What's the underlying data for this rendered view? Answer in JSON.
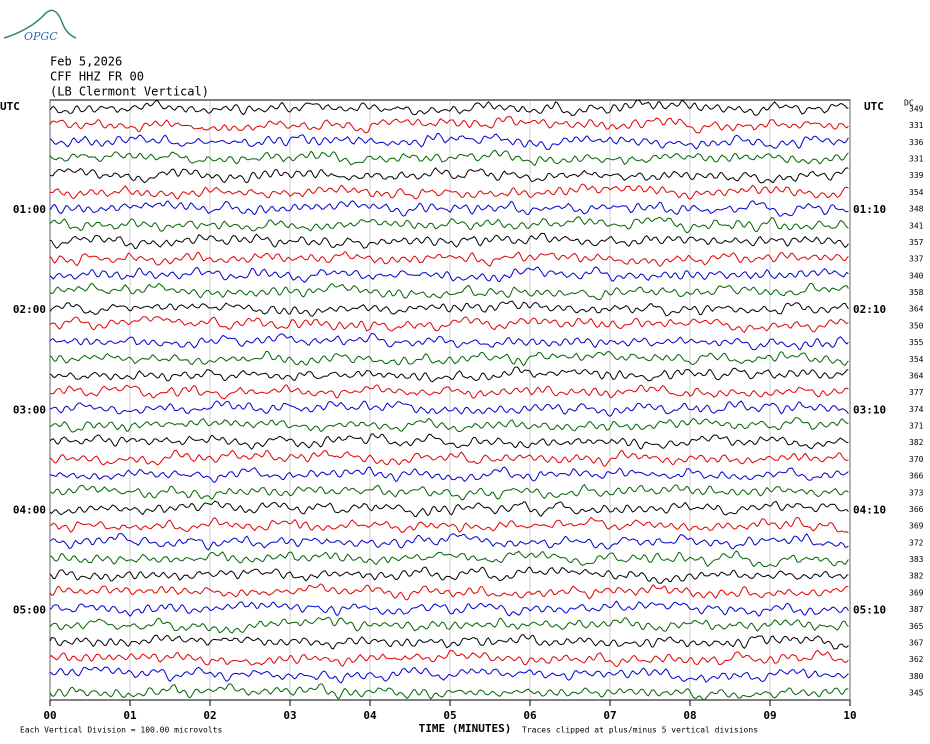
{
  "chart_data": {
    "type": "helicorder",
    "logo": "OPGC",
    "title": "Feb 5,2026",
    "subtitle": "CFF HHZ FR 00",
    "station": "(LB  Clermont Vertical)",
    "left_axis_label": "UTC",
    "right_axis_label": "UTC",
    "dc_label": "DC",
    "xlabel": "TIME (MINUTES)",
    "scale_note": "Each Vertical Division =  100.00 microvolts",
    "clip_note": "Traces clipped at plus/minus 5 vertical divisions",
    "xlim": [
      0,
      10
    ],
    "xticks": [
      {
        "value": 0,
        "label": "00"
      },
      {
        "value": 1,
        "label": "01"
      },
      {
        "value": 2,
        "label": "02"
      },
      {
        "value": 3,
        "label": "03"
      },
      {
        "value": 4,
        "label": "04"
      },
      {
        "value": 5,
        "label": "05"
      },
      {
        "value": 6,
        "label": "06"
      },
      {
        "value": 7,
        "label": "07"
      },
      {
        "value": 8,
        "label": "08"
      },
      {
        "value": 9,
        "label": "09"
      },
      10
    ],
    "grid": true,
    "trace_colors": [
      "#000000",
      "#e00000",
      "#0000d0",
      "#006400"
    ],
    "categories": [
      null,
      null,
      null,
      null,
      null,
      null,
      "01:00",
      null,
      null,
      null,
      null,
      null,
      "02:00",
      null,
      null,
      null,
      null,
      null,
      "03:00",
      null,
      null,
      null,
      null,
      null,
      "04:00",
      null,
      null,
      null,
      null,
      null,
      "05:00",
      null,
      null,
      null,
      null,
      null
    ],
    "right_categories": [
      null,
      null,
      null,
      null,
      null,
      null,
      "01:10",
      null,
      null,
      null,
      null,
      null,
      "02:10",
      null,
      null,
      null,
      null,
      null,
      "03:10",
      null,
      null,
      null,
      null,
      null,
      "04:10",
      null,
      null,
      null,
      null,
      null,
      "05:10",
      null,
      null,
      null,
      null,
      null
    ],
    "dc_values": [
      349,
      331,
      336,
      331,
      339,
      354,
      348,
      341,
      357,
      337,
      340,
      358,
      364,
      350,
      355,
      354,
      364,
      377,
      374,
      371,
      382,
      370,
      366,
      373,
      366,
      369,
      372,
      383,
      382,
      369,
      387,
      365,
      367,
      362,
      380,
      345
    ]
  }
}
